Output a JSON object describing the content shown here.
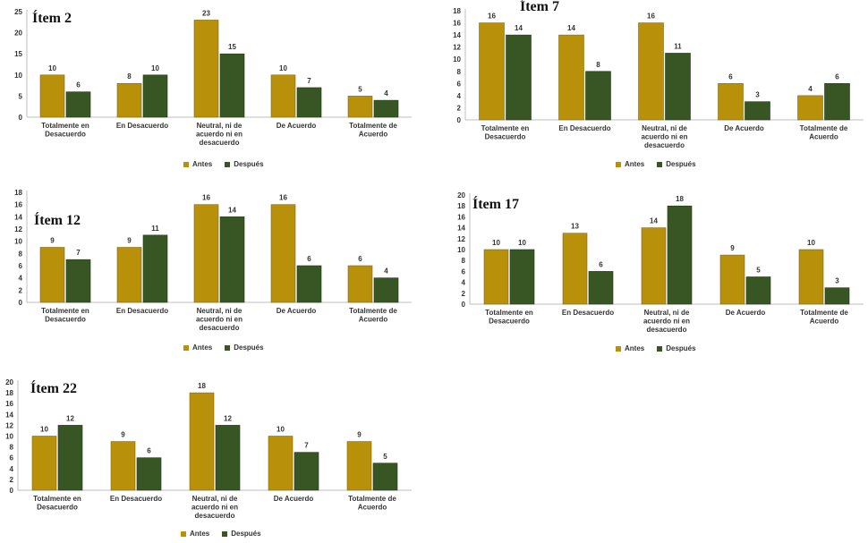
{
  "colors": {
    "antes": "#b8900a",
    "despues": "#375623",
    "axis": "#bfbfbf"
  },
  "chart_data": [
    {
      "type": "bar",
      "title": "Ítem 2",
      "categories": [
        "Totalmente en Desacuerdo",
        "En Desacuerdo",
        "Neutral, ni de acuerdo ni en desacuerdo",
        "De Acuerdo",
        "Totalmente de Acuerdo"
      ],
      "series": [
        {
          "name": "Antes",
          "values": [
            10,
            8,
            23,
            10,
            5
          ]
        },
        {
          "name": "Después",
          "values": [
            6,
            10,
            15,
            7,
            4
          ]
        }
      ],
      "yticks": [
        0,
        5,
        10,
        15,
        20,
        25
      ],
      "ylim": [
        0,
        25
      ]
    },
    {
      "type": "bar",
      "title": "Ítem 7",
      "categories": [
        "Totalmente en Desacuerdo",
        "En Desacuerdo",
        "Neutral, ni de acuerdo ni en desacuerdo",
        "De Acuerdo",
        "Totalmente de Acuerdo"
      ],
      "series": [
        {
          "name": "Antes",
          "values": [
            16,
            14,
            16,
            6,
            4
          ]
        },
        {
          "name": "Después",
          "values": [
            14,
            8,
            11,
            3,
            6
          ]
        }
      ],
      "yticks": [
        0,
        2,
        4,
        6,
        8,
        10,
        12,
        14,
        16,
        18
      ],
      "ylim": [
        0,
        18
      ]
    },
    {
      "type": "bar",
      "title": "Ítem 12",
      "categories": [
        "Totalmente en Desacuerdo",
        "En Desacuerdo",
        "Neutral, ni de acuerdo ni en desacuerdo",
        "De Acuerdo",
        "Totalmente de Acuerdo"
      ],
      "series": [
        {
          "name": "Antes",
          "values": [
            9,
            9,
            16,
            16,
            6
          ]
        },
        {
          "name": "Después",
          "values": [
            7,
            11,
            14,
            6,
            4
          ]
        }
      ],
      "yticks": [
        0,
        2,
        4,
        6,
        8,
        10,
        12,
        14,
        16,
        18
      ],
      "ylim": [
        0,
        18
      ]
    },
    {
      "type": "bar",
      "title": "Ítem 17",
      "categories": [
        "Totalmente en Desacuerdo",
        "En Desacuerdo",
        "Neutral, ni de acuerdo ni en desacuerdo",
        "De Acuerdo",
        "Totalmente de Acuerdo"
      ],
      "series": [
        {
          "name": "Antes",
          "values": [
            10,
            13,
            14,
            9,
            10
          ]
        },
        {
          "name": "Después",
          "values": [
            10,
            6,
            18,
            5,
            3
          ]
        }
      ],
      "yticks": [
        0,
        2,
        4,
        6,
        8,
        10,
        12,
        14,
        16,
        18,
        20
      ],
      "ylim": [
        0,
        20
      ]
    },
    {
      "type": "bar",
      "title": "Ítem 22",
      "categories": [
        "Totalmente en Desacuerdo",
        "En Desacuerdo",
        "Neutral, ni de acuerdo ni en desacuerdo",
        "De Acuerdo",
        "Totalmente de Acuerdo"
      ],
      "series": [
        {
          "name": "Antes",
          "values": [
            10,
            9,
            18,
            10,
            9
          ]
        },
        {
          "name": "Después",
          "values": [
            12,
            6,
            12,
            7,
            5
          ]
        }
      ],
      "yticks": [
        0,
        2,
        4,
        6,
        8,
        10,
        12,
        14,
        16,
        18,
        20
      ],
      "ylim": [
        0,
        20
      ]
    }
  ]
}
